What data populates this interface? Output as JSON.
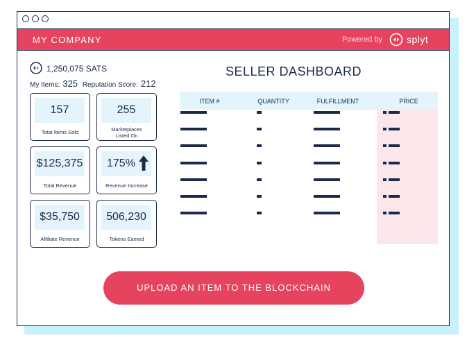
{
  "window": {
    "dots": 3
  },
  "header": {
    "company": "MY COMPANY",
    "powered_by": "Powered by",
    "brand": "splyt",
    "brand_color": "#e6435f"
  },
  "wallet": {
    "sats": "1,250,075 SATS",
    "icon": "splyt-token-icon"
  },
  "stats": {
    "my_items_label": "My Items:",
    "my_items": "325",
    "reputation_label": "Reputation Score:",
    "reputation": "212"
  },
  "cards": [
    {
      "value": "157",
      "label": "Total Items Sold"
    },
    {
      "value": "255",
      "label": "Marketplaces Listed On"
    },
    {
      "value": "$125,375",
      "label": "Total Revenue"
    },
    {
      "value": "175%",
      "label": "Revenue Increase",
      "icon": "arrow-up-icon"
    },
    {
      "value": "$35,750",
      "label": "Affiliate Revenue"
    },
    {
      "value": "506,230",
      "label": "Tokens Earned"
    }
  ],
  "dashboard": {
    "title": "SELLER DASHBOARD",
    "columns": [
      "ITEM #",
      "QUANTITY",
      "FULFILLMENT",
      "PRICE"
    ],
    "row_count": 7
  },
  "upload_button": "UPLOAD AN ITEM TO THE BLOCKCHAIN"
}
